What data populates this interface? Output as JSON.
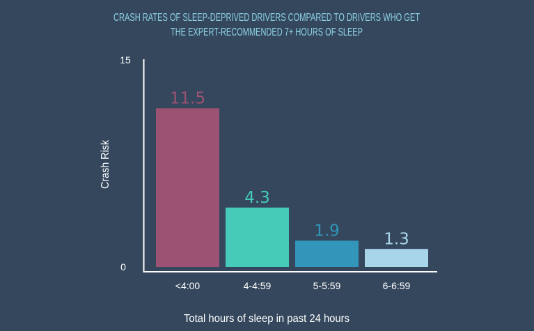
{
  "chart_data": {
    "type": "bar",
    "title_lines": [
      "CRASH RATES OF SLEEP-DEPRIVED DRIVERS COMPARED TO DRIVERS WHO GET",
      "THE EXPERT-RECOMMENDED 7+ HOURS OF SLEEP"
    ],
    "ylabel": "Crash Risk",
    "xlabel": "Total hours of sleep in past 24 hours",
    "ylim": [
      0,
      15
    ],
    "yticks": [
      "0",
      "15"
    ],
    "categories": [
      "<4:00",
      "4-4:59",
      "5-5:59",
      "6-6:59"
    ],
    "values": [
      11.5,
      4.3,
      1.9,
      1.3
    ],
    "value_labels": [
      "11.5",
      "4.3",
      "1.9",
      "1.3"
    ],
    "grid": false,
    "legend": "none",
    "colors": {
      "background": "#34475d",
      "title": "#8fd3e6",
      "axis": "#ffffff",
      "text": "#ffffff",
      "bars": [
        "#9c5273",
        "#46cbb9",
        "#3196b9",
        "#a9d5ea"
      ]
    }
  }
}
